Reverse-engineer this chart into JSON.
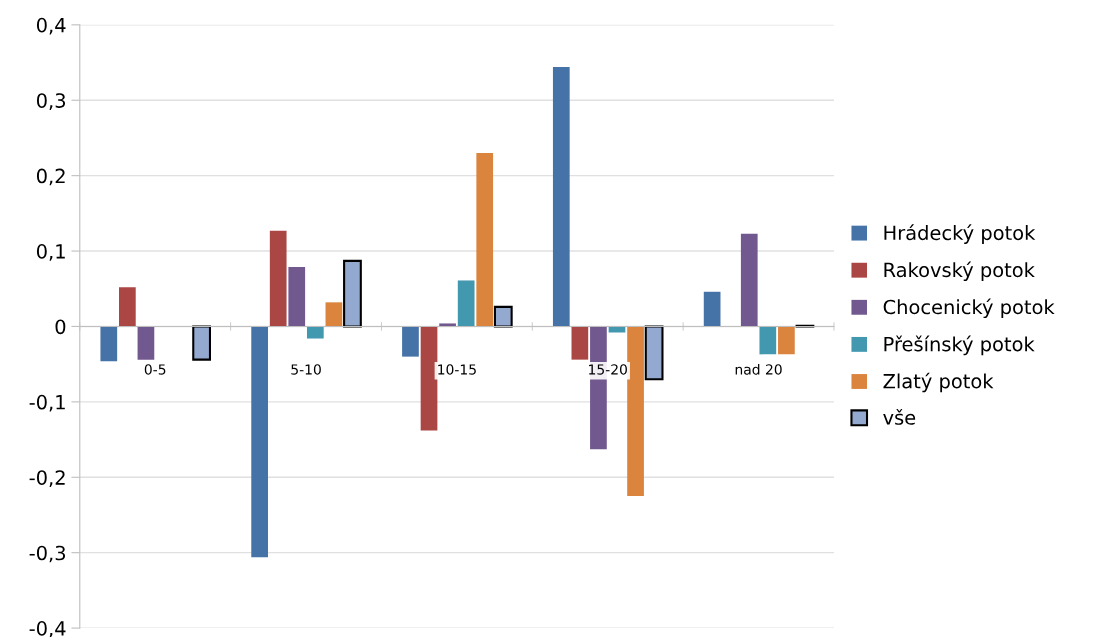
{
  "chart_data": {
    "type": "bar",
    "categories": [
      "0-5",
      "5-10",
      "10-15",
      "15-20",
      "nad 20"
    ],
    "series": [
      {
        "name": "Hrádecký potok",
        "color": "#4572a7",
        "values": [
          -0.046,
          -0.306,
          -0.04,
          0.344,
          0.046
        ]
      },
      {
        "name": "Rakovský potok",
        "color": "#aa4643",
        "values": [
          0.052,
          0.127,
          -0.138,
          -0.044,
          0
        ]
      },
      {
        "name": "Chocenický potok",
        "color": "#71588f",
        "values": [
          -0.044,
          0.079,
          0.004,
          -0.163,
          0.123
        ]
      },
      {
        "name": "Přešínský potok",
        "color": "#4198af",
        "values": [
          0,
          -0.016,
          0.061,
          -0.008,
          -0.037
        ]
      },
      {
        "name": "Zlatý potok",
        "color": "#db843d",
        "values": [
          0,
          0.032,
          0.23,
          -0.225,
          -0.037
        ]
      },
      {
        "name": "vše",
        "color": "#93a9cf",
        "values": [
          -0.044,
          0.087,
          0.026,
          -0.07,
          0.001
        ]
      }
    ],
    "ylim": [
      -0.4,
      0.4
    ],
    "yticks": [
      {
        "value": -0.4,
        "label": "-0,4"
      },
      {
        "value": -0.3,
        "label": "-0,3"
      },
      {
        "value": -0.2,
        "label": "-0,2"
      },
      {
        "value": -0.1,
        "label": "-0,1"
      },
      {
        "value": 0,
        "label": "0"
      },
      {
        "value": 0.1,
        "label": "0,1"
      },
      {
        "value": 0.2,
        "label": "0,2"
      },
      {
        "value": 0.3,
        "label": "0,3"
      },
      {
        "value": 0.4,
        "label": "0,4"
      }
    ],
    "grid": "y",
    "legend": "right"
  }
}
